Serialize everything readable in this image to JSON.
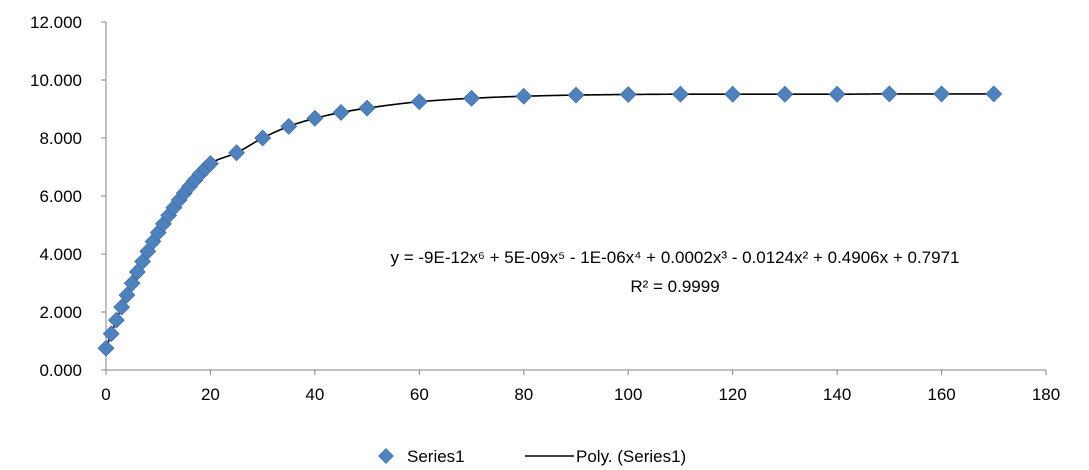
{
  "chart_data": {
    "type": "scatter",
    "xlim": [
      0,
      180
    ],
    "ylim": [
      0,
      12
    ],
    "x_ticks": [
      "0",
      "20",
      "40",
      "60",
      "80",
      "100",
      "120",
      "140",
      "160",
      "180"
    ],
    "y_ticks": [
      "0.000",
      "2.000",
      "4.000",
      "6.000",
      "8.000",
      "10.000",
      "12.000"
    ],
    "grid": false,
    "legend_position": "bottom",
    "series": [
      {
        "name": "Series1",
        "marker": "diamond",
        "color": "#4F81BD",
        "points": [
          [
            0,
            0.75
          ],
          [
            1,
            1.25
          ],
          [
            2,
            1.72
          ],
          [
            3,
            2.17
          ],
          [
            4,
            2.58
          ],
          [
            5,
            2.99
          ],
          [
            6,
            3.38
          ],
          [
            7,
            3.74
          ],
          [
            8,
            4.09
          ],
          [
            9,
            4.43
          ],
          [
            10,
            4.74
          ],
          [
            11,
            5.04
          ],
          [
            12,
            5.33
          ],
          [
            13,
            5.6
          ],
          [
            14,
            5.86
          ],
          [
            15,
            6.1
          ],
          [
            16,
            6.33
          ],
          [
            17,
            6.54
          ],
          [
            18,
            6.75
          ],
          [
            19,
            6.94
          ],
          [
            20,
            7.12
          ],
          [
            25,
            7.49
          ],
          [
            30,
            8.0
          ],
          [
            35,
            8.4
          ],
          [
            40,
            8.68
          ],
          [
            45,
            8.88
          ],
          [
            50,
            9.03
          ],
          [
            60,
            9.25
          ],
          [
            70,
            9.37
          ],
          [
            80,
            9.44
          ],
          [
            90,
            9.48
          ],
          [
            100,
            9.5
          ],
          [
            110,
            9.51
          ],
          [
            120,
            9.51
          ],
          [
            130,
            9.51
          ],
          [
            140,
            9.51
          ],
          [
            150,
            9.52
          ],
          [
            160,
            9.52
          ],
          [
            170,
            9.52
          ]
        ]
      }
    ],
    "trendline": {
      "name": "Poly. (Series1)",
      "type": "polynomial",
      "order": 6,
      "color": "#000000",
      "equation": "y = -9E-12x⁶ + 5E-09x⁵ - 1E-06x⁴ + 0.0002x³ - 0.0124x² + 0.4906x + 0.7971",
      "r_squared": "R² = 0.9999"
    }
  }
}
